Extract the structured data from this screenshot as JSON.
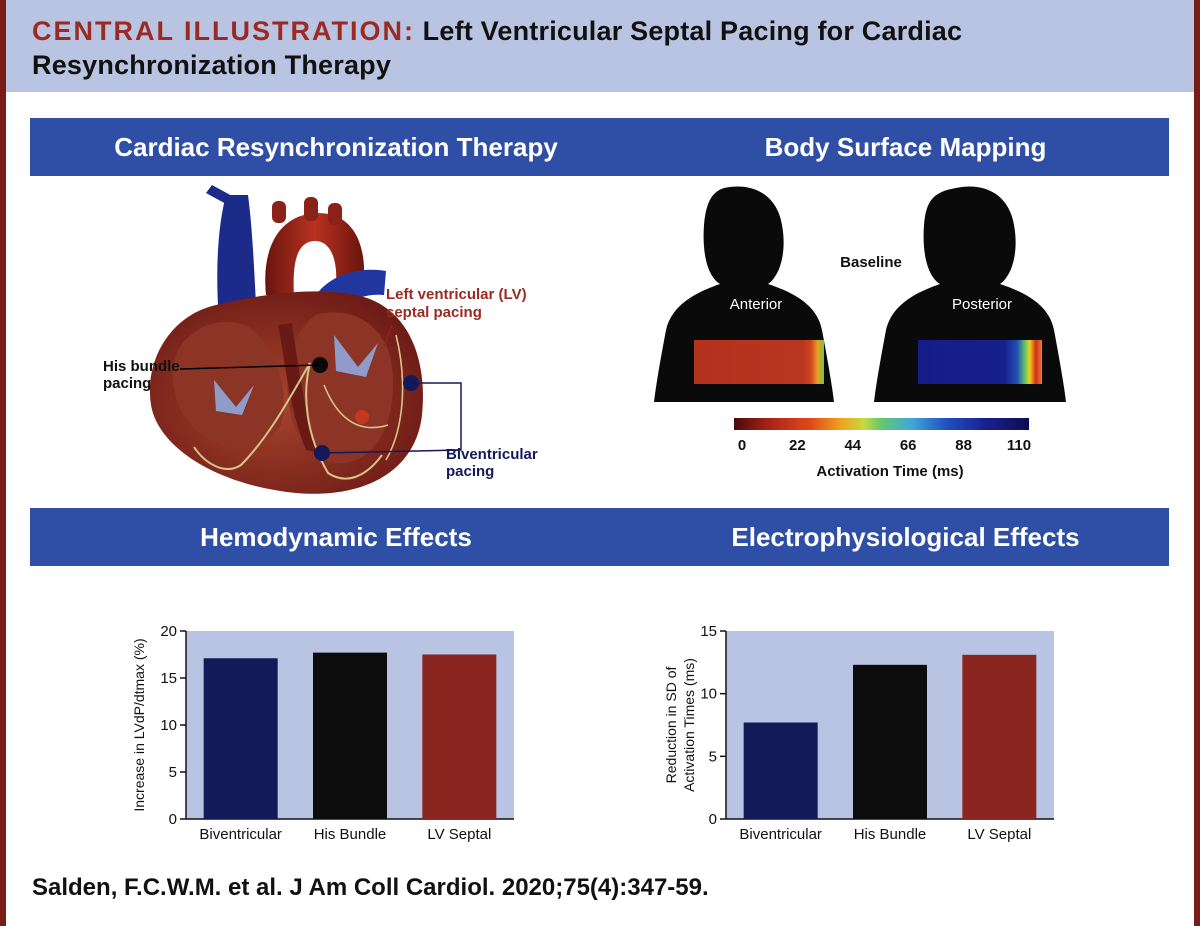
{
  "title": {
    "lead": "CENTRAL ILLUSTRATION:",
    "rest": "Left Ventricular Septal Pacing for Cardiac Resynchronization Therapy"
  },
  "sections": {
    "crt": "Cardiac Resynchronization Therapy",
    "bsm": "Body Surface Mapping",
    "hemo": "Hemodynamic Effects",
    "ep": "Electrophysiological Effects"
  },
  "heart": {
    "lv_label_1": "Left ventricular (LV)",
    "lv_label_2": "septal pacing",
    "his_label_1": "His bundle",
    "his_label_2": "pacing",
    "biv_label_1": "Biventricular",
    "biv_label_2": "pacing"
  },
  "mapping": {
    "baseline": "Baseline",
    "anterior": "Anterior",
    "posterior": "Posterior",
    "scale_ticks": [
      "0",
      "22",
      "44",
      "66",
      "88",
      "110"
    ],
    "scale_label": "Activation Time (ms)"
  },
  "colors": {
    "band": "#2f4fa6",
    "plot_bg": "#b9c3e2",
    "bar_biv": "#14195a",
    "bar_his": "#0c0c0c",
    "bar_lv": "#8b2520"
  },
  "chart_data": [
    {
      "type": "bar",
      "categories": [
        "Biventricular",
        "His Bundle",
        "LV Septal"
      ],
      "values": [
        17.1,
        17.7,
        17.5
      ],
      "ylabel": "Increase in LVdP/dtmax (%)",
      "ylim": [
        0,
        20
      ],
      "yticks": [
        "0",
        "5",
        "10",
        "15",
        "20"
      ]
    },
    {
      "type": "bar",
      "categories": [
        "Biventricular",
        "His Bundle",
        "LV Septal"
      ],
      "values": [
        7.7,
        12.3,
        13.1
      ],
      "ylabel_lines": [
        "Reduction in SD of",
        "Activation Times (ms)"
      ],
      "ylim": [
        0,
        15
      ],
      "yticks": [
        "0",
        "5",
        "10",
        "15"
      ]
    }
  ],
  "citation": "Salden, F.C.W.M. et al. J Am Coll Cardiol. 2020;75(4):347-59."
}
